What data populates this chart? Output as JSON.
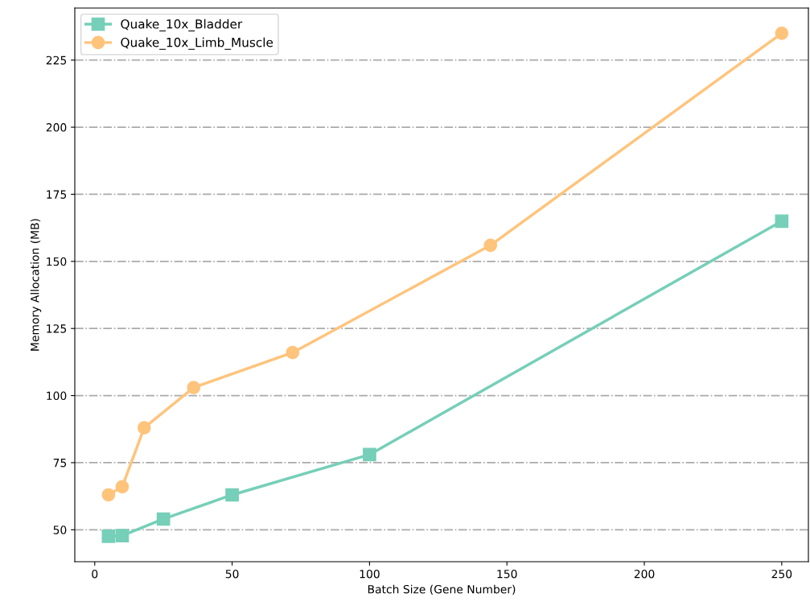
{
  "chart_data": {
    "type": "line",
    "xlabel": "Batch Size (Gene Number)",
    "ylabel": "Memory Allocation (MB)",
    "series": [
      {
        "name": "Quake_10x_Bladder",
        "color": "#76cfb8",
        "marker": "square",
        "x": [
          5,
          10,
          25,
          50,
          100,
          250
        ],
        "values": [
          47.6,
          47.8,
          54,
          63,
          78,
          165
        ]
      },
      {
        "name": "Quake_10x_Limb_Muscle",
        "color": "#fec47c",
        "marker": "circle",
        "x": [
          5,
          10,
          18,
          36,
          72,
          144,
          250
        ],
        "values": [
          63,
          66,
          88,
          103,
          116,
          156,
          235
        ]
      }
    ],
    "xlim": [
      -7.25,
      259.7
    ],
    "ylim": [
      38.1,
      244.4
    ],
    "xticks": [
      0,
      50,
      100,
      150,
      200,
      250
    ],
    "yticks": [
      50,
      75,
      100,
      125,
      150,
      175,
      200,
      225
    ],
    "grid": "y",
    "legend": "top left",
    "line_style": "solid"
  }
}
